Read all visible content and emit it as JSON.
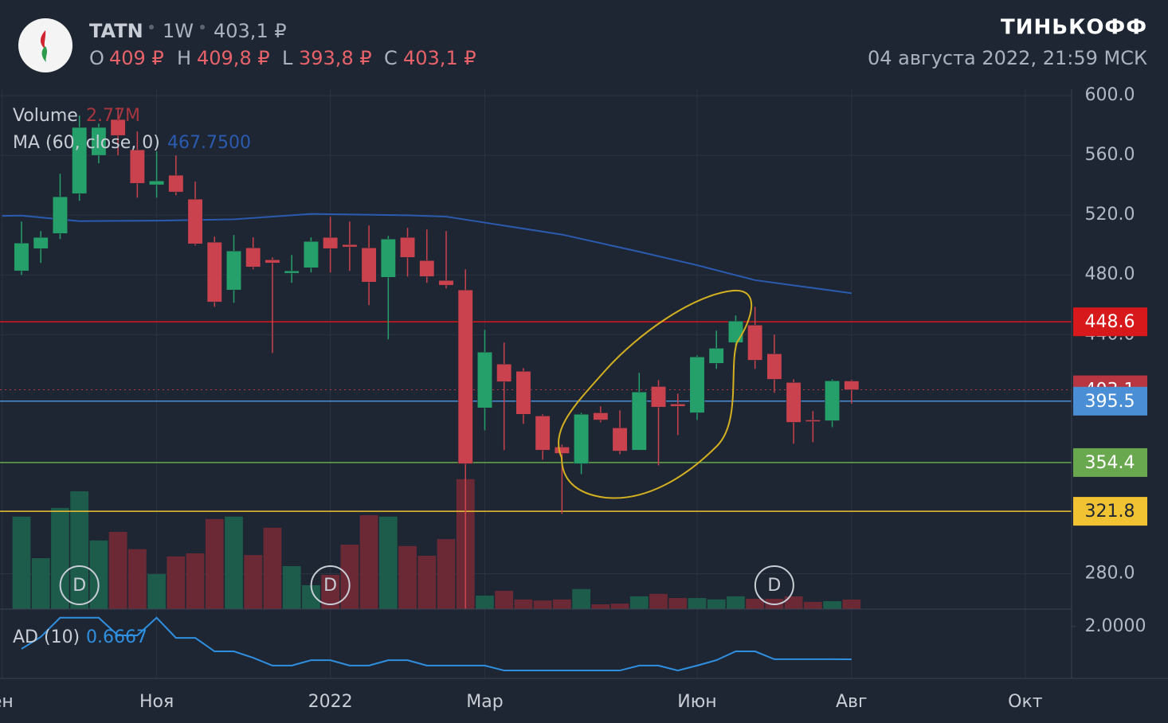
{
  "header": {
    "ticker": "TATN",
    "interval": "1W",
    "price": "403,1 ₽",
    "o_key": "O",
    "open": "409 ₽",
    "h_key": "H",
    "high": "409,8 ₽",
    "l_key": "L",
    "low": "393,8 ₽",
    "c_key": "C",
    "close": "403,1 ₽",
    "brand": "ТИНЬКОФФ",
    "datetime": "04 августа 2022, 21:59 МСК"
  },
  "legend": {
    "volume": "Volume",
    "volume_value": "2.77M",
    "ma": "MA (60, close, 0)",
    "ma_value": "467.7500",
    "ad": "AD (10)",
    "ad_value": "0.6667"
  },
  "chart_data": {
    "type": "candlestick",
    "x": [
      0,
      1,
      2,
      3,
      4,
      5,
      6,
      7,
      8,
      9,
      10,
      11,
      12,
      13,
      14,
      15,
      16,
      17,
      18,
      19,
      20,
      21,
      22,
      23,
      24,
      25,
      26,
      27,
      28,
      29,
      30,
      31,
      32,
      33,
      34,
      35,
      36,
      37,
      38,
      39,
      40,
      41,
      42,
      43
    ],
    "open": [
      482.7,
      497.6,
      507.7,
      534.4,
      560,
      584,
      563.7,
      540.3,
      546.7,
      530.7,
      501.9,
      469.9,
      498.1,
      490.1,
      481.1,
      484.8,
      505.1,
      500.3,
      498.1,
      478.4,
      505.1,
      489.6,
      476.3,
      469.9,
      391,
      420.3,
      415.5,
      385.6,
      364.8,
      353.6,
      387.7,
      377.6,
      362.7,
      405.3,
      393.6,
      387.7,
      420.8,
      434.7,
      446.4,
      427.2,
      408,
      382.9,
      382.4,
      409
    ],
    "high": [
      515.7,
      509.3,
      547.7,
      586.7,
      581.3,
      592,
      576,
      562.7,
      560,
      542.4,
      505.6,
      506.7,
      505.1,
      491.7,
      493.3,
      505.1,
      518.9,
      515.7,
      513.1,
      506.1,
      511.5,
      510.4,
      509.3,
      483.7,
      443.2,
      434.7,
      417.6,
      386.7,
      366.4,
      387.7,
      392,
      389.3,
      414.4,
      409.6,
      400.5,
      426.1,
      442.7,
      452.8,
      458.7,
      440,
      410.1,
      388.8,
      410.1,
      409.8
    ],
    "low": [
      480,
      488,
      504,
      529.6,
      554.7,
      560,
      531.7,
      531.7,
      533.3,
      499.7,
      458.7,
      461.3,
      483.7,
      427.7,
      474.7,
      481.6,
      481.6,
      482.7,
      459.7,
      436.8,
      478.9,
      474.7,
      470.9,
      256.3,
      376,
      362.7,
      380.3,
      356.3,
      320,
      346.7,
      381.3,
      360,
      362.7,
      352.5,
      372.8,
      382.9,
      417.1,
      429.3,
      417.1,
      401.1,
      367,
      368,
      378.1,
      393.8
    ],
    "close": [
      501.3,
      505.1,
      532.3,
      578.7,
      578.7,
      573.3,
      541.3,
      542.9,
      535.5,
      500.8,
      461.9,
      496,
      485.3,
      488,
      482.7,
      502.4,
      497.6,
      498.7,
      475.2,
      504,
      491.7,
      478.9,
      473.1,
      353.6,
      428.3,
      408.5,
      386.7,
      362.7,
      360.5,
      386.7,
      382.9,
      362.1,
      401.6,
      391.5,
      392,
      425.1,
      430.9,
      449.1,
      422.9,
      410.1,
      381.3,
      381.9,
      409.1,
      403.1
    ],
    "volume": [
      26.7,
      14.7,
      29.2,
      34,
      19.8,
      22.3,
      17.3,
      10.1,
      15.2,
      16.1,
      26,
      26.7,
      15.6,
      23.5,
      12.4,
      6.9,
      9.9,
      18.6,
      27.1,
      26.7,
      18.2,
      15.4,
      20.2,
      37.5,
      3.9,
      5.3,
      2.8,
      2.5,
      2.8,
      5.8,
      1.4,
      1.6,
      3.7,
      4.4,
      3.2,
      3.2,
      2.8,
      3.7,
      3,
      3,
      3.7,
      2.1,
      2.3,
      2.77
    ],
    "up_color": "#26a06b",
    "down_color": "#c9424d",
    "volume_up_color": "#1d5b4b",
    "volume_down_color": "#6b2935",
    "volume_lim": [
      0,
      150
    ],
    "ma": {
      "color": "#2a5bb0",
      "x": [
        -1,
        0,
        3,
        7,
        11,
        15,
        20,
        22,
        24,
        28,
        32,
        35,
        38,
        43
      ],
      "values": [
        519.5,
        519.7,
        516,
        516.3,
        517.2,
        520.8,
        519.9,
        519,
        515,
        507,
        495.5,
        486.5,
        476.5,
        467.75
      ]
    },
    "ad": {
      "color": "#2f8fe0",
      "values": [
        1.09,
        1.58,
        2.36,
        2.36,
        2.36,
        1.64,
        1.64,
        2.36,
        1.54,
        1.54,
        0.99,
        0.99,
        0.73,
        0.41,
        0.41,
        0.63,
        0.63,
        0.41,
        0.41,
        0.63,
        0.63,
        0.41,
        0.41,
        0.41,
        0.41,
        0.21,
        0.21,
        0.21,
        0.21,
        0.21,
        0.21,
        0.21,
        0.41,
        0.41,
        0.21,
        0.41,
        0.63,
        0.99,
        0.99,
        0.67,
        0.67,
        0.67,
        0.67,
        0.6667
      ],
      "ylim": [
        -0.08,
        2.71
      ],
      "yticks": [
        {
          "value": 2,
          "label": "2.0000"
        }
      ]
    },
    "levels": [
      {
        "value": 448.6,
        "color": "#d7191c",
        "text_color": "#ffffff",
        "style": "solid"
      },
      {
        "value": 403.1,
        "color": "#b73641",
        "text_color": "#ffffff",
        "style": "dotted"
      },
      {
        "value": 395.5,
        "color": "#4a8fd6",
        "text_color": "#ffffff",
        "style": "solid"
      },
      {
        "value": 354.4,
        "color": "#6aa84f",
        "text_color": "#ffffff",
        "style": "solid"
      },
      {
        "value": 321.8,
        "color": "#f1c232",
        "text_color": "#1e2633",
        "style": "solid"
      }
    ],
    "dividends": {
      "x": [
        3,
        16,
        39
      ],
      "label": "D"
    },
    "xlim": [
      -1.114,
      54.4
    ],
    "xticks": [
      {
        "value": -1,
        "label": "ен"
      },
      {
        "value": 7,
        "label": "Ноя"
      },
      {
        "value": 16,
        "label": "2022"
      },
      {
        "value": 24,
        "label": "Мар"
      },
      {
        "value": 35,
        "label": "Июн"
      },
      {
        "value": 43,
        "label": "Авг"
      },
      {
        "value": 52,
        "label": "Окт"
      }
    ],
    "ylim": [
      256.3,
      604.3
    ],
    "yticks": [
      {
        "value": 600,
        "label": "600.0"
      },
      {
        "value": 560,
        "label": "560.0"
      },
      {
        "value": 520,
        "label": "520.0"
      },
      {
        "value": 480,
        "label": "480.0"
      },
      {
        "value": 440,
        "label": "440.0"
      },
      {
        "value": 280,
        "label": "280.0"
      }
    ],
    "grid": true
  }
}
